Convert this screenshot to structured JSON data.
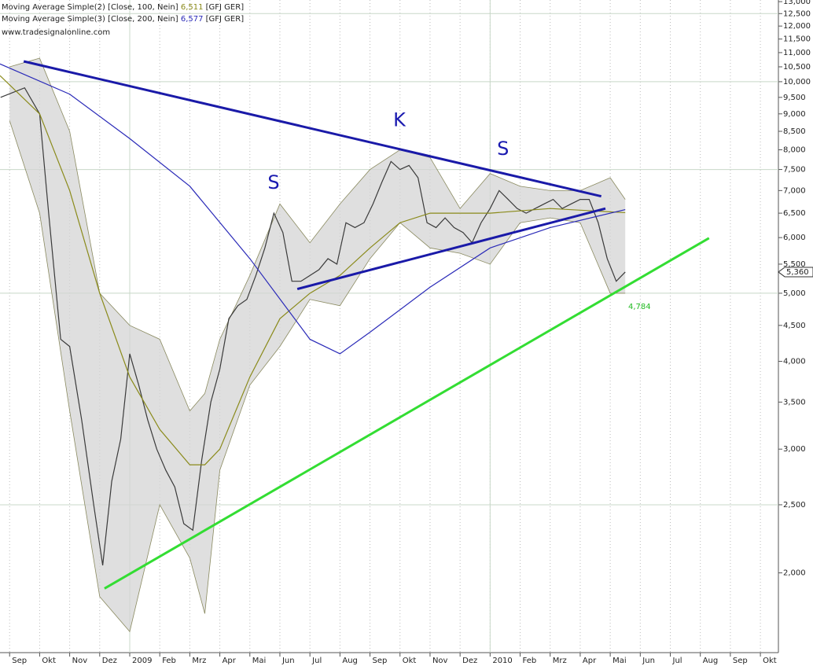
{
  "chart_data": {
    "type": "line",
    "log_scale": true,
    "source_text": "www.tradesignalonline.com",
    "xlim": [
      -0.32,
      25.6
    ],
    "xticks": [
      {
        "value": 0,
        "label": "Sep"
      },
      {
        "value": 1,
        "label": "Okt"
      },
      {
        "value": 2,
        "label": "Nov"
      },
      {
        "value": 3,
        "label": "Dez"
      },
      {
        "value": 4,
        "label": "2009"
      },
      {
        "value": 5,
        "label": "Feb"
      },
      {
        "value": 6,
        "label": "Mrz"
      },
      {
        "value": 7,
        "label": "Apr"
      },
      {
        "value": 8,
        "label": "Mai"
      },
      {
        "value": 9,
        "label": "Jun"
      },
      {
        "value": 10,
        "label": "Jul"
      },
      {
        "value": 11,
        "label": "Aug"
      },
      {
        "value": 12,
        "label": "Sep"
      },
      {
        "value": 13,
        "label": "Okt"
      },
      {
        "value": 14,
        "label": "Nov"
      },
      {
        "value": 15,
        "label": "Dez"
      },
      {
        "value": 16,
        "label": "2010"
      },
      {
        "value": 17,
        "label": "Feb"
      },
      {
        "value": 18,
        "label": "Mrz"
      },
      {
        "value": 19,
        "label": "Apr"
      },
      {
        "value": 20,
        "label": "Mai"
      },
      {
        "value": 21,
        "label": "Jun"
      },
      {
        "value": 22,
        "label": "Jul"
      },
      {
        "value": 23,
        "label": "Aug"
      },
      {
        "value": 24,
        "label": "Sep"
      },
      {
        "value": 25,
        "label": "Okt"
      }
    ],
    "year_lines": [
      4,
      16
    ],
    "ylim": [
      1540,
      13070
    ],
    "yticks": [
      {
        "value": 13000,
        "label": "13,000"
      },
      {
        "value": 12500,
        "label": "12,500"
      },
      {
        "value": 12000,
        "label": "12,000"
      },
      {
        "value": 11500,
        "label": "11,500"
      },
      {
        "value": 11000,
        "label": "11,000"
      },
      {
        "value": 10500,
        "label": "10,500"
      },
      {
        "value": 10000,
        "label": "10,000"
      },
      {
        "value": 9500,
        "label": "9,500"
      },
      {
        "value": 9000,
        "label": "9,000"
      },
      {
        "value": 8500,
        "label": "8,500"
      },
      {
        "value": 8000,
        "label": "8,000"
      },
      {
        "value": 7500,
        "label": "7,500"
      },
      {
        "value": 7000,
        "label": "7,000"
      },
      {
        "value": 6500,
        "label": "6,500"
      },
      {
        "value": 6000,
        "label": "6,000"
      },
      {
        "value": 5500,
        "label": "5,500"
      },
      {
        "value": 5000,
        "label": "5,000"
      },
      {
        "value": 4500,
        "label": "4,500"
      },
      {
        "value": 4000,
        "label": "4,000"
      },
      {
        "value": 3500,
        "label": "3,500"
      },
      {
        "value": 3000,
        "label": "3,000"
      },
      {
        "value": 2500,
        "label": "2,500"
      },
      {
        "value": 2000,
        "label": "2,000"
      }
    ],
    "major_grid": [
      12500,
      10000,
      7500,
      5000,
      2500
    ],
    "band": {
      "color": "#d4d4d4",
      "edge_color": "#8a8a60",
      "x": [
        0,
        1,
        2,
        3,
        4,
        5,
        6,
        6.5,
        7,
        8,
        9,
        10,
        11,
        12,
        13,
        14,
        15,
        16,
        17,
        18,
        19,
        20,
        20.5
      ],
      "upper": [
        10500,
        10800,
        8500,
        5000,
        4500,
        4300,
        3400,
        3600,
        4300,
        5300,
        6700,
        5900,
        6700,
        7500,
        8000,
        7800,
        6600,
        7400,
        7100,
        7000,
        7000,
        7300,
        6800
      ],
      "lower": [
        8800,
        6500,
        3400,
        1850,
        1650,
        2500,
        2100,
        1750,
        2800,
        3700,
        4200,
        4900,
        4800,
        5600,
        6300,
        5800,
        5700,
        5500,
        6300,
        6400,
        6300,
        5000,
        5000
      ]
    },
    "series": [
      {
        "color": "#3a3a3a",
        "x": [
          -0.3,
          0.5,
          1.0,
          1.3,
          1.7,
          2.0,
          2.4,
          2.8,
          3.1,
          3.4,
          3.7,
          4.0,
          4.3,
          4.6,
          4.9,
          5.2,
          5.5,
          5.8,
          6.1,
          6.4,
          6.7,
          7.0,
          7.3,
          7.6,
          7.9,
          8.2,
          8.5,
          8.8,
          9.1,
          9.4,
          9.7,
          10.0,
          10.3,
          10.6,
          10.9,
          11.2,
          11.5,
          11.8,
          12.1,
          12.4,
          12.7,
          13.0,
          13.3,
          13.6,
          13.9,
          14.2,
          14.5,
          14.8,
          15.1,
          15.4,
          15.7,
          16.0,
          16.3,
          16.6,
          16.9,
          17.2,
          17.5,
          17.8,
          18.1,
          18.4,
          18.7,
          19.0,
          19.3,
          19.6,
          19.9,
          20.2,
          20.5
        ],
        "values": [
          9500,
          9800,
          9000,
          6500,
          4300,
          4200,
          3300,
          2500,
          2050,
          2700,
          3100,
          4100,
          3700,
          3300,
          3000,
          2800,
          2650,
          2350,
          2300,
          2900,
          3500,
          3900,
          4600,
          4800,
          4900,
          5300,
          5800,
          6500,
          6100,
          5200,
          5200,
          5300,
          5400,
          5600,
          5500,
          6300,
          6200,
          6300,
          6700,
          7200,
          7700,
          7500,
          7600,
          7300,
          6300,
          6200,
          6400,
          6200,
          6100,
          5900,
          6300,
          6600,
          7000,
          6800,
          6600,
          6500,
          6600,
          6700,
          6800,
          6600,
          6700,
          6800,
          6800,
          6300,
          5600,
          5200,
          5360
        ]
      },
      {
        "name": "Moving Average Simple(2) [Close, 100, Nein]",
        "last_label": "6,511",
        "source": "[GFJ GER]",
        "color": "#8a8a1a",
        "x": [
          -0.32,
          1,
          2,
          3,
          4,
          5,
          6,
          6.5,
          7,
          8,
          9,
          10,
          11,
          12,
          13,
          14,
          16,
          18,
          20.5
        ],
        "values": [
          10200,
          9000,
          7000,
          5000,
          3800,
          3200,
          2850,
          2850,
          3000,
          3800,
          4600,
          5000,
          5300,
          5800,
          6300,
          6500,
          6500,
          6600,
          6511
        ]
      },
      {
        "name": "Moving Average Simple(3) [Close, 200, Nein]",
        "last_label": "6,577",
        "source": "[GFJ GER]",
        "color": "#2a2ab8",
        "x": [
          -0.32,
          2,
          4,
          6,
          8,
          10,
          11,
          12,
          14,
          16,
          18,
          20.5
        ],
        "values": [
          10600,
          9600,
          8300,
          7100,
          5600,
          4300,
          4100,
          4400,
          5100,
          5800,
          6200,
          6577
        ]
      }
    ],
    "trendlines": [
      {
        "color": "#1a1aa8",
        "x": [
          0.47,
          19.7
        ],
        "values": [
          10690,
          6870
        ]
      },
      {
        "color": "#1a1aa8",
        "x": [
          9.58,
          19.84
        ],
        "values": [
          5070,
          6600
        ]
      },
      {
        "color": "#33dd33",
        "x": [
          3.16,
          23.29
        ],
        "values": [
          1900,
          5990
        ]
      }
    ],
    "annotations": [
      {
        "text": "K",
        "x": 12.98,
        "y": 8800
      },
      {
        "text": "S",
        "x": 8.79,
        "y": 7170
      },
      {
        "text": "S",
        "x": 16.43,
        "y": 8010
      }
    ],
    "line_value": {
      "value": 4784,
      "label": "4,784",
      "x": 20.6
    },
    "last_price": {
      "value": 5360,
      "label": "5,360"
    }
  }
}
